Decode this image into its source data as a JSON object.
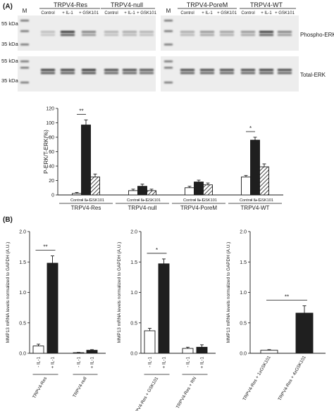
{
  "panel_a": {
    "label": "(A)",
    "blot": {
      "marker_label": "M",
      "kda_labels": [
        "55 kDa",
        "35 kDa",
        "55 kDa",
        "35 kDa"
      ],
      "groups": [
        "TRPV4-Res",
        "TRPV4-null",
        "TRPV4-PoreM",
        "TRPV4-WT"
      ],
      "lanes": [
        "Control",
        "+ IL-1",
        "+ GSK101"
      ],
      "row_labels": [
        "Phospho-ERK",
        "Total-ERK"
      ]
    }
  },
  "panel_b": {
    "label": "(B)"
  },
  "chart_data": [
    {
      "type": "bar",
      "ylabel": "P-ERK/T-ERK(%)",
      "ylim": [
        0,
        120
      ],
      "yticks": [
        "0",
        "20",
        "40",
        "60",
        "80",
        "100",
        "120"
      ],
      "groups": [
        "TRPV4-Res",
        "TRPV4-null",
        "TRPV4-PoreM",
        "TRPV4-WT"
      ],
      "categories": [
        "Control",
        "+ IL-1",
        "+ GSK101"
      ],
      "values": [
        [
          2,
          97,
          25
        ],
        [
          6,
          12,
          6
        ],
        [
          10,
          18,
          14
        ],
        [
          25,
          76,
          39
        ]
      ],
      "errors": [
        [
          1.5,
          7,
          4
        ],
        [
          2,
          3,
          2
        ],
        [
          2,
          2.5,
          2.5
        ],
        [
          2,
          4,
          4
        ]
      ],
      "styles": [
        "open",
        "filled",
        "hatched"
      ],
      "annotations": [
        {
          "text": "**",
          "group": 0,
          "from": 0,
          "to": 1
        },
        {
          "text": "*",
          "group": 3,
          "from": 0,
          "to": 1
        }
      ]
    },
    {
      "type": "bar",
      "ylabel": "MMP13 mRNA levels normalized to GAPDH (A.U.)",
      "ylim": [
        0,
        2
      ],
      "yticks": [
        "0.0",
        "0.5",
        "1.0",
        "1.5",
        "2.0"
      ],
      "categories": [
        "- IL-1",
        "+ IL-1",
        "- IL-1",
        "+ IL-1"
      ],
      "values": [
        0.12,
        1.48,
        0.01,
        0.05
      ],
      "errors": [
        0.03,
        0.12,
        0.005,
        0.01
      ],
      "styles": [
        "open",
        "filled",
        "open",
        "filled"
      ],
      "group_labels": [
        "TRPV4-Res",
        "TRPV4-null"
      ],
      "annotations": [
        {
          "text": "**",
          "from": 0,
          "to": 1
        }
      ]
    },
    {
      "type": "bar",
      "ylabel": "MMP13 mRNA levels normalized to GAPDH (A.U.)",
      "ylim": [
        0,
        2
      ],
      "yticks": [
        "0.0",
        "0.5",
        "1.0",
        "1.5",
        "2.0"
      ],
      "categories": [
        "- IL-1",
        "+ IL-1",
        "- IL-1",
        "+ IL-1"
      ],
      "values": [
        0.37,
        1.47,
        0.08,
        0.1
      ],
      "errors": [
        0.04,
        0.08,
        0.02,
        0.04
      ],
      "styles": [
        "open",
        "filled",
        "open",
        "filled"
      ],
      "group_labels": [
        "TRPV4-Res + GSK101",
        "TRPV4-Res + RN"
      ],
      "annotations": [
        {
          "text": "*",
          "from": 0,
          "to": 1
        }
      ]
    },
    {
      "type": "bar",
      "ylabel": "MMP13 mRNA levels normalized to GAPDH (A.U.)",
      "ylim": [
        0,
        2
      ],
      "yticks": [
        "0.0",
        "0.5",
        "1.0",
        "1.5",
        "2.0"
      ],
      "categories": [
        "TRPV4-Res + 1xGSK101",
        "TRPV4-Res + 4xGSK101"
      ],
      "values": [
        0.05,
        0.66
      ],
      "errors": [
        0.01,
        0.12
      ],
      "styles": [
        "open",
        "filled"
      ],
      "annotations": [
        {
          "text": "**",
          "from": 0,
          "to": 1
        }
      ]
    }
  ]
}
